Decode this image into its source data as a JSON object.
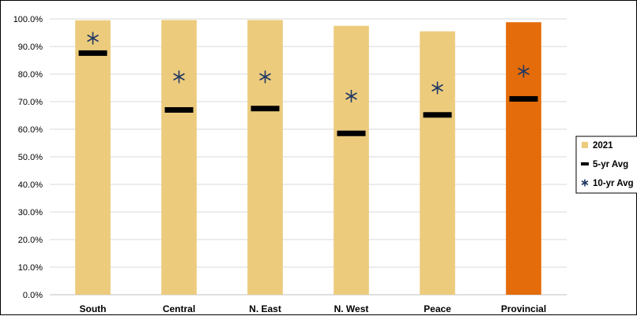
{
  "chart_data": {
    "type": "bar",
    "title": "",
    "xlabel": "",
    "ylabel": "",
    "categories": [
      "South",
      "Central",
      "N. East",
      "N. West",
      "Peace",
      "Provincial"
    ],
    "ylim": [
      0,
      100
    ],
    "ytick_labels": [
      "0.0%",
      "10.0%",
      "20.0%",
      "30.0%",
      "40.0%",
      "50.0%",
      "60.0%",
      "70.0%",
      "80.0%",
      "90.0%",
      "100.0%"
    ],
    "grid": true,
    "legend": "right",
    "series": [
      {
        "name": "2021",
        "kind": "bar",
        "values": [
          99.5,
          99.6,
          99.6,
          97.5,
          95.5,
          98.8
        ],
        "color": "#ECCB7D",
        "highlight_color": "#E46C0A",
        "highlight_index": 5
      },
      {
        "name": "5-yr Avg",
        "kind": "dash",
        "values": [
          87.6,
          67.0,
          67.5,
          58.5,
          65.2,
          71.0
        ],
        "color": "#000000"
      },
      {
        "name": "10-yr Avg",
        "kind": "star",
        "values": [
          93.0,
          79.0,
          79.0,
          72.0,
          75.0,
          81.0
        ],
        "color": "#1F3864"
      }
    ]
  }
}
